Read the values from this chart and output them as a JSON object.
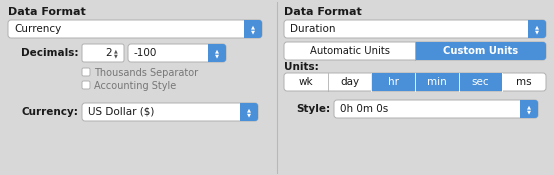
{
  "bg_color": "#d8d8d8",
  "white": "#ffffff",
  "blue": "#4a90d9",
  "text_dark": "#1a1a1a",
  "text_gray": "#777777",
  "border": "#b0b0b0",
  "left": {
    "title": "Data Format",
    "dropdown1_text": "Currency",
    "label_decimals": "Decimals:",
    "decimal_val": "2",
    "neg_val": "-100",
    "cb1": "Thousands Separator",
    "cb2": "Accounting Style",
    "label_currency": "Currency:",
    "currency_val": "US Dollar ($)"
  },
  "right": {
    "title": "Data Format",
    "dropdown1_text": "Duration",
    "btn_left": "Automatic Units",
    "btn_right": "Custom Units",
    "label_units": "Units:",
    "unit_btns": [
      "wk",
      "day",
      "hr",
      "min",
      "sec",
      "ms"
    ],
    "unit_active": [
      2,
      3,
      4
    ],
    "label_style": "Style:",
    "style_val": "0h 0m 0s"
  }
}
